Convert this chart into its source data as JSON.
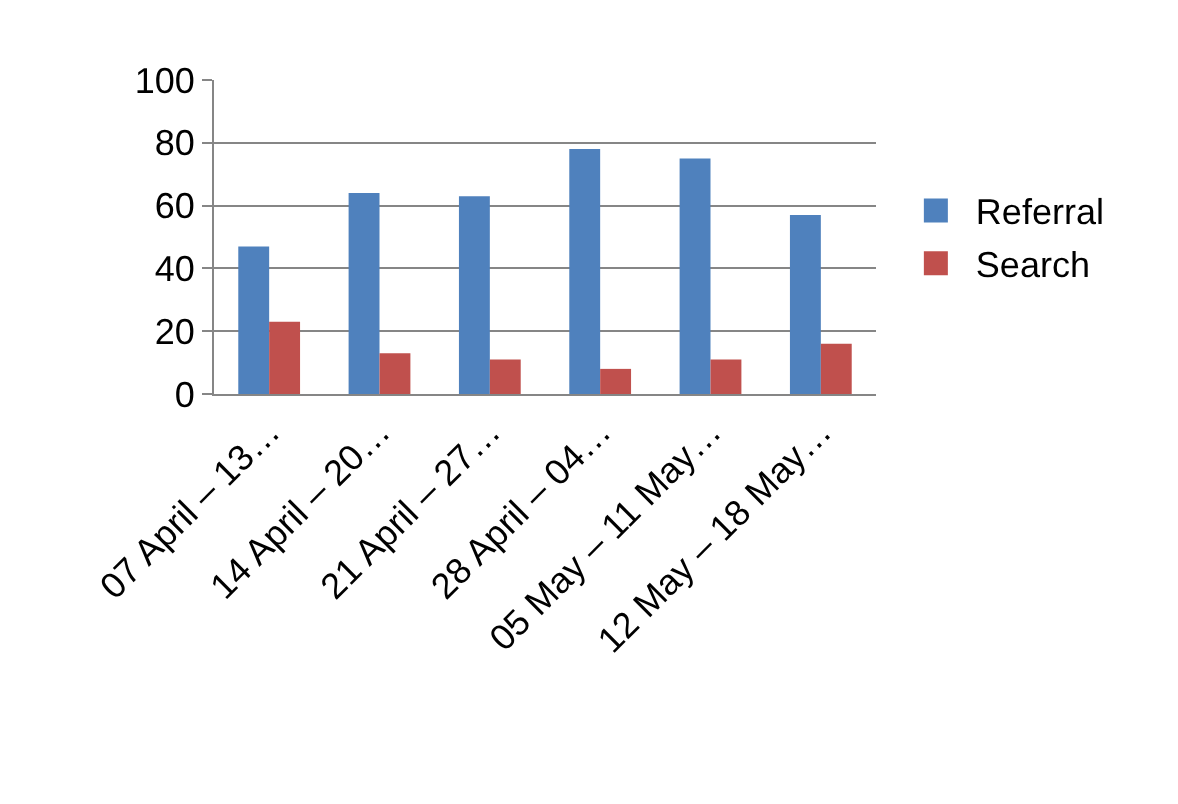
{
  "chart_data": {
    "type": "bar",
    "categories": [
      "07 April – 13…",
      "14 April – 20…",
      "21 April – 27…",
      "28 April – 04…",
      "05 May – 11 May…",
      "12 May – 18 May…"
    ],
    "series": [
      {
        "name": "Referral",
        "color": "#4f81bd",
        "values": [
          47,
          64,
          63,
          78,
          75,
          57
        ]
      },
      {
        "name": "Search",
        "color": "#c0504d",
        "values": [
          23,
          13,
          11,
          8,
          11,
          16
        ]
      }
    ],
    "ylim": [
      0,
      100
    ],
    "yticks": [
      0,
      20,
      40,
      60,
      80,
      100
    ],
    "grid": "y",
    "legend": "right"
  }
}
